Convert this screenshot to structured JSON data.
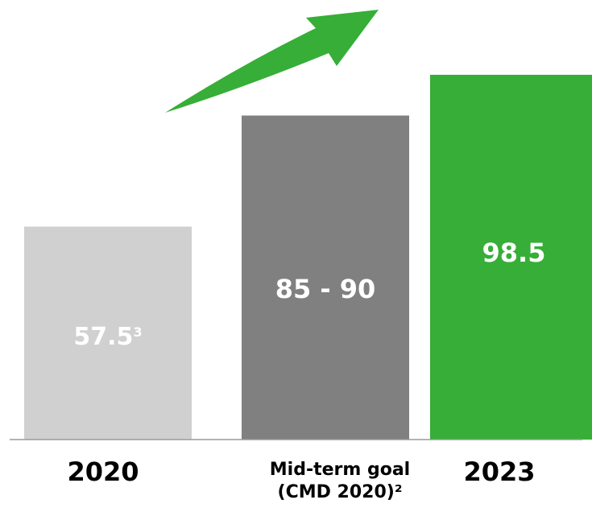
{
  "chart_data": {
    "type": "bar",
    "title": "",
    "xlabel": "",
    "ylabel": "",
    "ylim": [
      0,
      100
    ],
    "grid": false,
    "categories": [
      "2020",
      "Mid-term goal (CMD 2020)²",
      "2023"
    ],
    "category_lines": [
      [
        "2020"
      ],
      [
        "Mid-term goal",
        "(CMD 2020)²"
      ],
      [
        "2023"
      ]
    ],
    "values": [
      57.5,
      87.5,
      98.5
    ],
    "value_labels": [
      {
        "text": "57.5",
        "sup": "3"
      },
      {
        "text": "85 - 90",
        "sup": ""
      },
      {
        "text": "98.5",
        "sup": ""
      }
    ],
    "colors": [
      "#d0d0d0",
      "#808080",
      "#36ae37"
    ],
    "trend_arrow": {
      "color": "#36ae37",
      "direction": "up-right"
    }
  }
}
